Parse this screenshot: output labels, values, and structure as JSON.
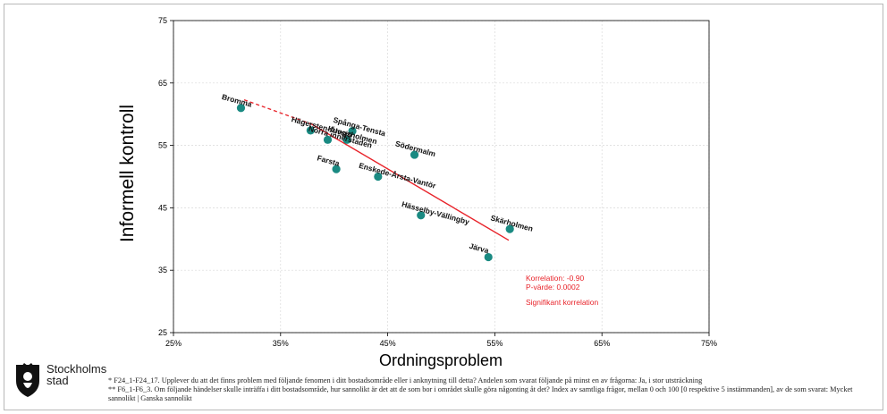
{
  "chart_data": {
    "type": "scatter",
    "xlabel": "Ordningsproblem",
    "ylabel": "Informell kontroll",
    "xlim": [
      25,
      75
    ],
    "ylim": [
      25,
      75
    ],
    "x_ticks": [
      25,
      35,
      45,
      55,
      65,
      75
    ],
    "x_tick_labels": [
      "25%",
      "35%",
      "45%",
      "55%",
      "65%",
      "75%"
    ],
    "y_ticks": [
      25,
      35,
      45,
      55,
      65,
      75
    ],
    "y_tick_labels": [
      "25",
      "35",
      "45",
      "55",
      "65",
      "75"
    ],
    "grid": true,
    "marker_color": "#1a8a82",
    "trend_color": "#e8232a",
    "points": [
      {
        "label": "Bromma",
        "x": 31.3,
        "y": 61.0
      },
      {
        "label": "Hägersten-Älvsjö",
        "x": 37.8,
        "y": 57.4
      },
      {
        "label": "Norra innerstaden",
        "x": 39.4,
        "y": 55.9
      },
      {
        "label": "Spånga-Tensta",
        "x": 41.7,
        "y": 57.3
      },
      {
        "label": "Kungsholmen",
        "x": 41.2,
        "y": 55.9
      },
      {
        "label": "Södermalm",
        "x": 47.5,
        "y": 53.5
      },
      {
        "label": "Farsta",
        "x": 40.2,
        "y": 51.2
      },
      {
        "label": "Enskede-Årsta-Vantör",
        "x": 44.1,
        "y": 50.0
      },
      {
        "label": "Hässelby-Vällingby",
        "x": 48.1,
        "y": 43.8
      },
      {
        "label": "Skärholmen",
        "x": 56.4,
        "y": 41.6
      },
      {
        "label": "Järva",
        "x": 54.4,
        "y": 37.1
      }
    ],
    "trend_solid": [
      [
        37.9,
        58.4
      ],
      [
        56.3,
        39.8
      ]
    ],
    "trend_dashed": [
      [
        31.6,
        62.3
      ],
      [
        37.9,
        58.4
      ]
    ],
    "stats": {
      "correlation": "Korrelation: -0.90",
      "p_value": "P-värde: 0.0002",
      "significance": "Signifikant korrelation"
    }
  },
  "logo": {
    "line1": "Stockholms",
    "line2": "stad"
  },
  "footnotes": {
    "line1": "* F24_1-F24_17. Upplever du att det finns problem med följande fenomen i ditt bostadsområde eller i anknytning till detta? Andelen som svarat följande på minst en av frågorna: Ja, i stor utsträckning",
    "line2": "** F6_1-F6_3. Om följande händelser skulle inträffa i ditt bostadsområde, hur sannolikt är det att de som bor i området skulle göra någonting åt det? Index av samtliga frågor, mellan 0 och 100 [0 respektive 5 instämmanden], av de som svarat: Mycket sannolikt | Ganska sannolikt"
  }
}
